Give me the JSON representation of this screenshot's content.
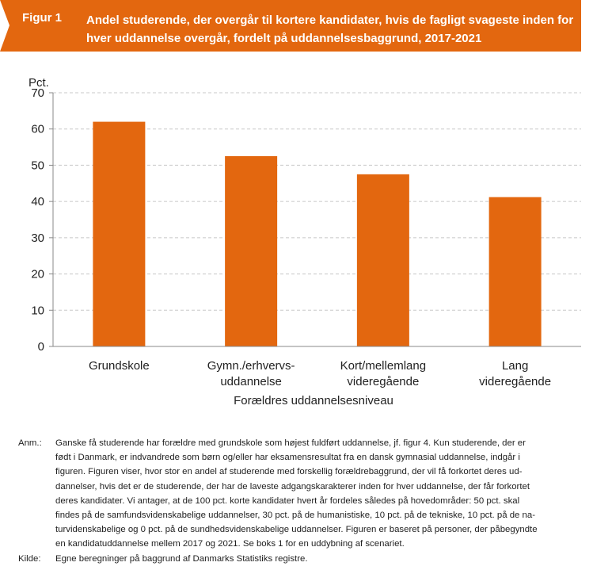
{
  "figure": {
    "label": "Figur 1",
    "title": "Andel studerende, der overgår til kortere kandidater, hvis de fagligt svageste inden for hver uddannelse overgår, fordelt på uddannelsesbaggrund, 2017-2021"
  },
  "colors": {
    "accent": "#E3670F",
    "bar": "#E3670F",
    "grid": "#c8c8c8"
  },
  "chart_data": {
    "type": "bar",
    "title": "",
    "xlabel": "Forældres uddannelsesniveau",
    "ylabel": "Pct.",
    "ylim": [
      0,
      70
    ],
    "yticks": [
      0,
      10,
      20,
      30,
      40,
      50,
      60,
      70
    ],
    "grid": true,
    "categories": [
      [
        "Grundskole"
      ],
      [
        "Gymn./erhvervs-",
        "uddannelse"
      ],
      [
        "Kort/mellemlang",
        "videregående"
      ],
      [
        "Lang",
        "videregående"
      ]
    ],
    "values": [
      62,
      52.5,
      47.5,
      41.2
    ]
  },
  "notes": {
    "anm_label": "Anm.:",
    "anm_lines": [
      "Ganske få studerende har forældre med grundskole som højest fuldført uddannelse, jf. figur 4. Kun studerende, der er",
      "født i Danmark, er indvandrede som børn og/eller har eksamensresultat fra en dansk gymnasial uddannelse, indgår i",
      "figuren. Figuren viser, hvor stor en andel af studerende med forskellig forældrebaggrund, der vil få forkortet deres ud-",
      "dannelser, hvis det er de studerende, der har de laveste adgangskarakterer inden for hver uddannelse, der får forkortet",
      "deres kandidater. Vi antager, at de 100 pct. korte kandidater hvert år fordeles således på hovedområder: 50 pct. skal",
      "findes på de samfundsvidenskabelige uddannelser, 30 pct. på de humanistiske, 10 pct. på de tekniske, 10 pct. på de na-",
      "turvidenskabelige og 0 pct. på de sundhedsvidenskabelige uddannelser. Figuren er baseret på personer, der påbegyndte",
      "en kandidatuddannelse mellem 2017 og 2021. Se boks 1 for en uddybning af scenariet."
    ],
    "kilde_label": "Kilde:",
    "kilde_text": "Egne beregninger på baggrund af Danmarks Statistiks registre."
  }
}
